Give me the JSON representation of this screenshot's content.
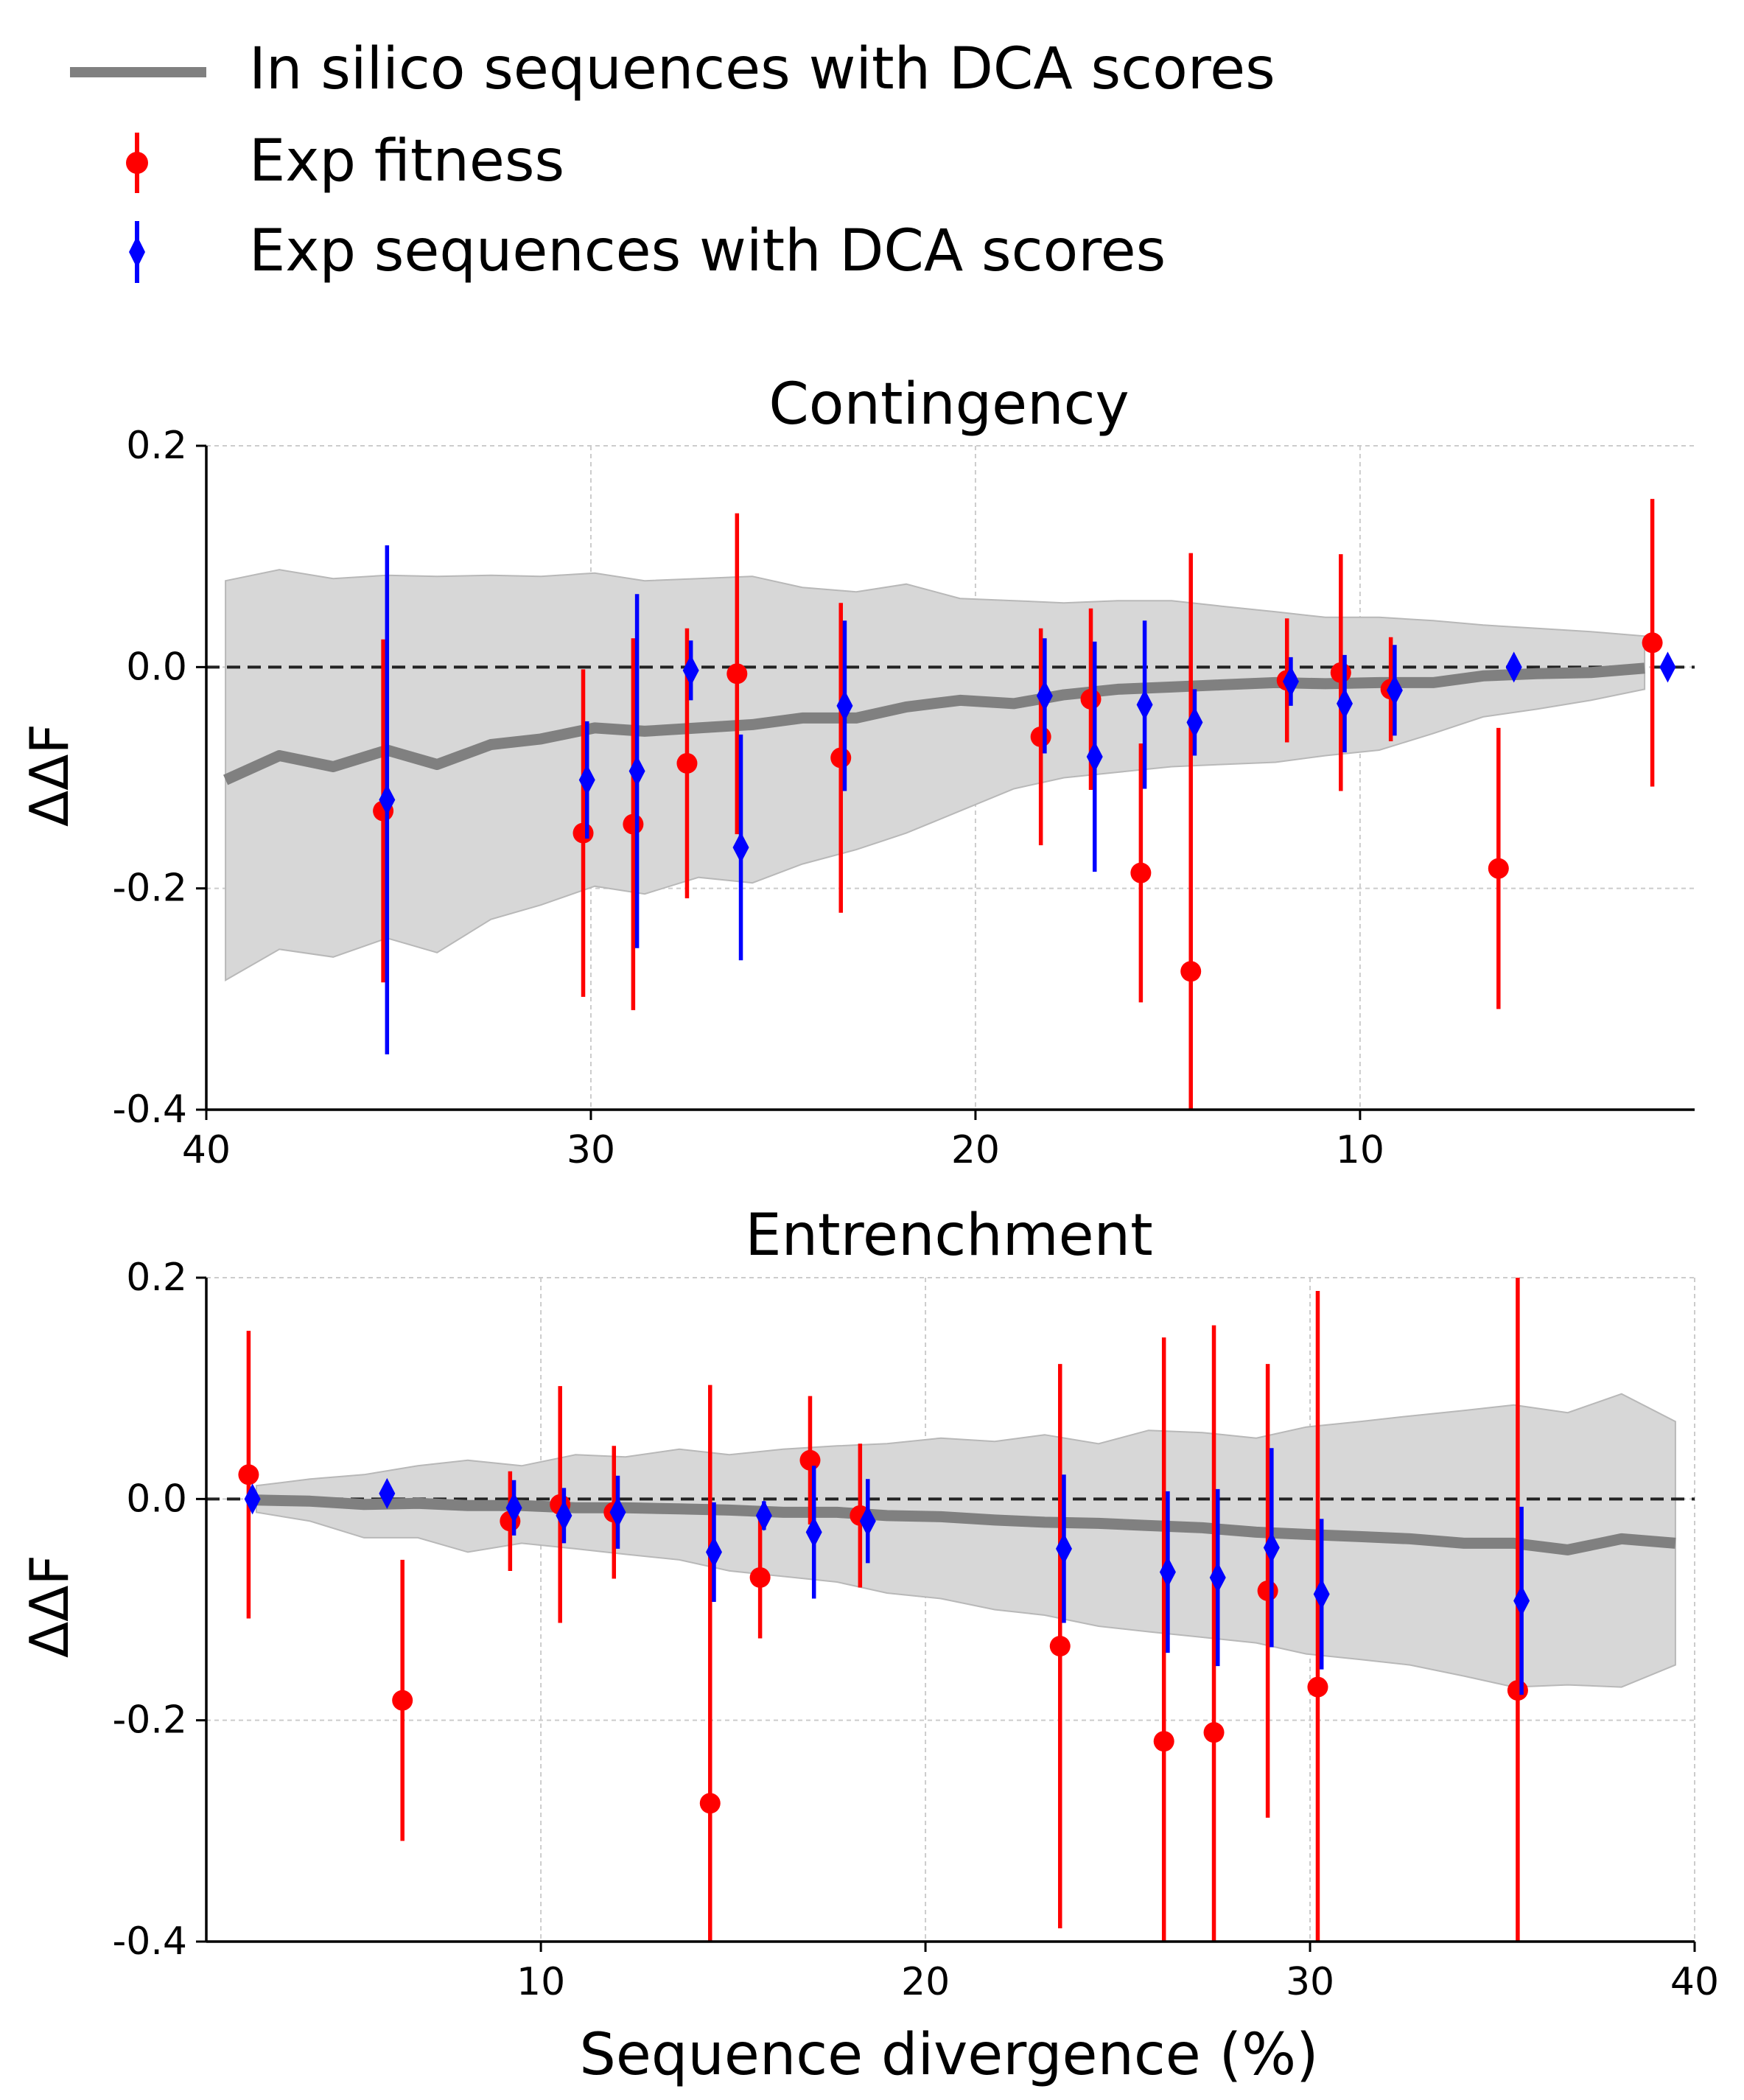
{
  "legend": {
    "entries": [
      {
        "label": "In silico sequences with DCA scores",
        "color": "#808080",
        "marker": "line"
      },
      {
        "label": "Exp fitness",
        "color": "#ff0000",
        "marker": "circle"
      },
      {
        "label": "Exp sequences with DCA scores",
        "color": "#0000ff",
        "marker": "diamond"
      }
    ]
  },
  "chart_data": [
    {
      "type": "line",
      "title": "Contingency",
      "xlabel": "",
      "ylabel": "ΔΔF",
      "x_reversed": true,
      "xlim": [
        40,
        1.3
      ],
      "ylim": [
        -0.4,
        0.2
      ],
      "xticks": [
        40,
        30,
        20,
        10
      ],
      "yticks": [
        -0.4,
        -0.2,
        0.0,
        0.2
      ],
      "ytick_labels": [
        "-0.4",
        "-0.2",
        "0.0",
        "0.2"
      ],
      "grid": true,
      "ref_line_y": 0.0,
      "band": {
        "x": [
          39.5,
          38.1,
          36.7,
          35.3,
          34.0,
          32.6,
          31.3,
          29.9,
          28.6,
          27.2,
          25.8,
          24.5,
          23.1,
          21.8,
          20.4,
          19.0,
          17.7,
          16.3,
          14.9,
          13.6,
          12.2,
          10.9,
          9.5,
          8.1,
          6.8,
          5.4,
          4.0,
          2.6
        ],
        "upper": [
          0.078,
          0.088,
          0.08,
          0.083,
          0.082,
          0.083,
          0.082,
          0.085,
          0.078,
          0.08,
          0.082,
          0.072,
          0.068,
          0.075,
          0.062,
          0.06,
          0.058,
          0.06,
          0.06,
          0.055,
          0.05,
          0.045,
          0.045,
          0.042,
          0.038,
          0.035,
          0.032,
          0.028
        ],
        "lower": [
          -0.283,
          -0.255,
          -0.262,
          -0.245,
          -0.258,
          -0.228,
          -0.215,
          -0.198,
          -0.205,
          -0.19,
          -0.195,
          -0.178,
          -0.165,
          -0.15,
          -0.13,
          -0.11,
          -0.1,
          -0.095,
          -0.09,
          -0.088,
          -0.086,
          -0.08,
          -0.075,
          -0.06,
          -0.045,
          -0.038,
          -0.03,
          -0.02
        ]
      },
      "series": [
        {
          "name": "In silico sequences with DCA scores",
          "kind": "line",
          "color": "#808080",
          "x": [
            39.5,
            38.1,
            36.7,
            35.3,
            34.0,
            32.6,
            31.3,
            29.9,
            28.6,
            27.2,
            25.8,
            24.5,
            23.1,
            21.8,
            20.4,
            19.0,
            17.7,
            16.3,
            14.9,
            13.6,
            12.2,
            10.9,
            9.5,
            8.1,
            6.8,
            5.4,
            4.0,
            2.6
          ],
          "y": [
            -0.102,
            -0.08,
            -0.09,
            -0.075,
            -0.088,
            -0.07,
            -0.065,
            -0.055,
            -0.058,
            -0.055,
            -0.052,
            -0.046,
            -0.046,
            -0.036,
            -0.03,
            -0.033,
            -0.025,
            -0.02,
            -0.018,
            -0.016,
            -0.014,
            -0.015,
            -0.014,
            -0.014,
            -0.008,
            -0.006,
            -0.005,
            -0.001
          ]
        },
        {
          "name": "Exp fitness",
          "kind": "errorbar",
          "marker": "circle",
          "color": "#ff0000",
          "x": [
            35.4,
            30.2,
            28.9,
            27.5,
            26.2,
            23.5,
            18.3,
            17.0,
            15.7,
            14.4,
            11.9,
            10.5,
            9.2,
            6.4,
            2.4
          ],
          "y": [
            -0.13,
            -0.15,
            -0.142,
            -0.087,
            -0.006,
            -0.082,
            -0.063,
            -0.029,
            -0.186,
            -0.275,
            -0.012,
            -0.005,
            -0.02,
            -0.182,
            0.022
          ],
          "err": [
            0.155,
            0.148,
            0.168,
            0.122,
            0.145,
            0.14,
            0.098,
            0.082,
            0.117,
            0.378,
            0.056,
            0.107,
            0.047,
            0.127,
            0.13
          ]
        },
        {
          "name": "Exp sequences with DCA scores",
          "kind": "errorbar",
          "marker": "diamond",
          "color": "#0000ff",
          "x": [
            35.3,
            30.1,
            28.8,
            27.4,
            26.1,
            23.4,
            18.2,
            16.9,
            15.6,
            14.3,
            11.8,
            10.4,
            9.1,
            6.0,
            2.0
          ],
          "y": [
            -0.12,
            -0.102,
            -0.094,
            -0.003,
            -0.163,
            -0.035,
            -0.026,
            -0.081,
            -0.034,
            -0.05,
            -0.013,
            -0.033,
            -0.021,
            0.0,
            0.0
          ],
          "err": [
            0.23,
            0.053,
            0.16,
            0.027,
            0.102,
            0.077,
            0.052,
            0.104,
            0.076,
            0.03,
            0.022,
            0.044,
            0.041,
            0.0,
            0.0
          ]
        }
      ]
    },
    {
      "type": "line",
      "title": "Entrenchment",
      "xlabel": "Sequence divergence (%)",
      "ylabel": "ΔΔF",
      "x_reversed": false,
      "xlim": [
        1.3,
        40
      ],
      "ylim": [
        -0.4,
        0.2
      ],
      "xticks": [
        10,
        20,
        30,
        40
      ],
      "yticks": [
        -0.4,
        -0.2,
        0.0,
        0.2
      ],
      "ytick_labels": [
        "-0.4",
        "-0.2",
        "0.0",
        "0.2"
      ],
      "grid": true,
      "ref_line_y": 0.0,
      "band": {
        "x": [
          2.6,
          4.0,
          5.4,
          6.8,
          8.1,
          9.5,
          10.9,
          12.2,
          13.6,
          14.9,
          16.3,
          17.7,
          19.0,
          20.4,
          21.8,
          23.1,
          24.5,
          25.8,
          27.2,
          28.6,
          29.9,
          31.3,
          32.6,
          34.0,
          35.3,
          36.7,
          38.1,
          39.5
        ],
        "upper": [
          0.012,
          0.018,
          0.022,
          0.03,
          0.035,
          0.03,
          0.04,
          0.038,
          0.045,
          0.04,
          0.045,
          0.048,
          0.05,
          0.055,
          0.052,
          0.058,
          0.05,
          0.062,
          0.06,
          0.055,
          0.065,
          0.07,
          0.075,
          0.08,
          0.085,
          0.078,
          0.095,
          0.07
        ],
        "lower": [
          -0.012,
          -0.02,
          -0.035,
          -0.035,
          -0.048,
          -0.04,
          -0.045,
          -0.05,
          -0.055,
          -0.065,
          -0.07,
          -0.075,
          -0.085,
          -0.09,
          -0.1,
          -0.105,
          -0.115,
          -0.12,
          -0.125,
          -0.13,
          -0.14,
          -0.145,
          -0.15,
          -0.16,
          -0.17,
          -0.168,
          -0.17,
          -0.15
        ]
      },
      "series": [
        {
          "name": "In silico sequences with DCA scores",
          "kind": "line",
          "color": "#808080",
          "x": [
            2.6,
            4.0,
            5.4,
            6.8,
            8.1,
            9.5,
            10.9,
            12.2,
            13.6,
            14.9,
            16.3,
            17.7,
            19.0,
            20.4,
            21.8,
            23.1,
            24.5,
            25.8,
            27.2,
            28.6,
            29.9,
            31.3,
            32.6,
            34.0,
            35.3,
            36.7,
            38.1,
            39.5
          ],
          "y": [
            -0.001,
            -0.002,
            -0.005,
            -0.004,
            -0.006,
            -0.006,
            -0.008,
            -0.008,
            -0.009,
            -0.01,
            -0.012,
            -0.012,
            -0.015,
            -0.016,
            -0.019,
            -0.021,
            -0.022,
            -0.024,
            -0.026,
            -0.03,
            -0.032,
            -0.034,
            -0.036,
            -0.04,
            -0.04,
            -0.046,
            -0.036,
            -0.04
          ]
        },
        {
          "name": "Exp fitness",
          "kind": "errorbar",
          "marker": "circle",
          "color": "#ff0000",
          "x": [
            2.4,
            6.4,
            9.2,
            10.5,
            11.9,
            14.4,
            15.7,
            17.0,
            18.3,
            23.5,
            26.2,
            27.5,
            28.9,
            30.2,
            35.4
          ],
          "y": [
            0.022,
            -0.182,
            -0.02,
            -0.005,
            -0.012,
            -0.275,
            -0.071,
            0.035,
            -0.015,
            -0.133,
            -0.219,
            -0.211,
            -0.083,
            -0.17,
            -0.173
          ],
          "err": [
            0.13,
            0.127,
            0.045,
            0.107,
            0.06,
            0.378,
            0.055,
            0.058,
            0.065,
            0.255,
            0.365,
            0.368,
            0.205,
            0.358,
            0.373
          ]
        },
        {
          "name": "Exp sequences with DCA scores",
          "kind": "errorbar",
          "marker": "diamond",
          "color": "#0000ff",
          "x": [
            2.5,
            6.0,
            9.3,
            10.6,
            12.0,
            14.5,
            15.8,
            17.1,
            18.5,
            23.6,
            26.3,
            27.6,
            29.0,
            30.3,
            35.5
          ],
          "y": [
            0.0,
            0.005,
            -0.008,
            -0.015,
            -0.012,
            -0.048,
            -0.015,
            -0.03,
            -0.02,
            -0.045,
            -0.066,
            -0.071,
            -0.044,
            -0.086,
            -0.092
          ],
          "err": [
            0.0,
            0.0,
            0.025,
            0.025,
            0.033,
            0.045,
            0.013,
            0.06,
            0.038,
            0.067,
            0.073,
            0.08,
            0.09,
            0.068,
            0.085
          ]
        }
      ]
    }
  ]
}
